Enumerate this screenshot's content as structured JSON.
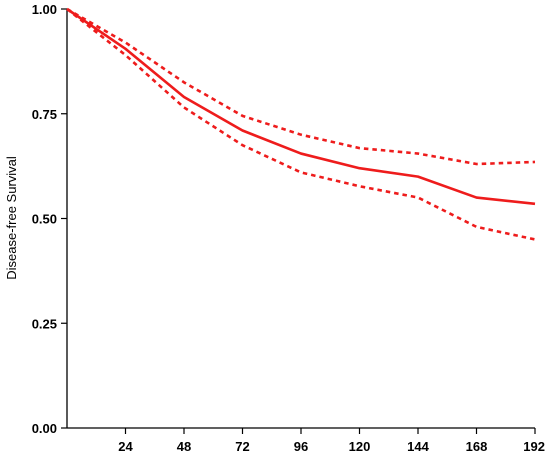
{
  "chart_data": {
    "type": "line",
    "title": "",
    "xlabel": "",
    "ylabel": "Disease-free Survival",
    "xlim": [
      0,
      192
    ],
    "ylim": [
      0,
      1
    ],
    "x_ticks": [
      24,
      48,
      72,
      96,
      120,
      144,
      168,
      192
    ],
    "x_tick_labels": [
      "24",
      "48",
      "72",
      "96",
      "120",
      "144",
      "168",
      "192"
    ],
    "y_ticks": [
      0,
      0.25,
      0.5,
      0.75,
      1
    ],
    "y_tick_labels": [
      "0.00",
      "0.25",
      "0.50",
      "0.75",
      "1.00"
    ],
    "grid": false,
    "legend": "none",
    "color": "#ee1c1c",
    "series": [
      {
        "style": "solid",
        "x": [
          0,
          24,
          48,
          72,
          96,
          120,
          144,
          168,
          192
        ],
        "y": [
          1.0,
          0.905,
          0.79,
          0.71,
          0.655,
          0.62,
          0.6,
          0.55,
          0.535
        ]
      },
      {
        "style": "dotted",
        "x": [
          0,
          24,
          48,
          72,
          96,
          120,
          144,
          168,
          192
        ],
        "y": [
          1.0,
          0.92,
          0.825,
          0.745,
          0.7,
          0.668,
          0.655,
          0.63,
          0.635
        ]
      },
      {
        "style": "dotted",
        "x": [
          0,
          24,
          48,
          72,
          96,
          120,
          144,
          168,
          192
        ],
        "y": [
          1.0,
          0.89,
          0.765,
          0.675,
          0.61,
          0.577,
          0.55,
          0.48,
          0.45
        ]
      }
    ]
  }
}
